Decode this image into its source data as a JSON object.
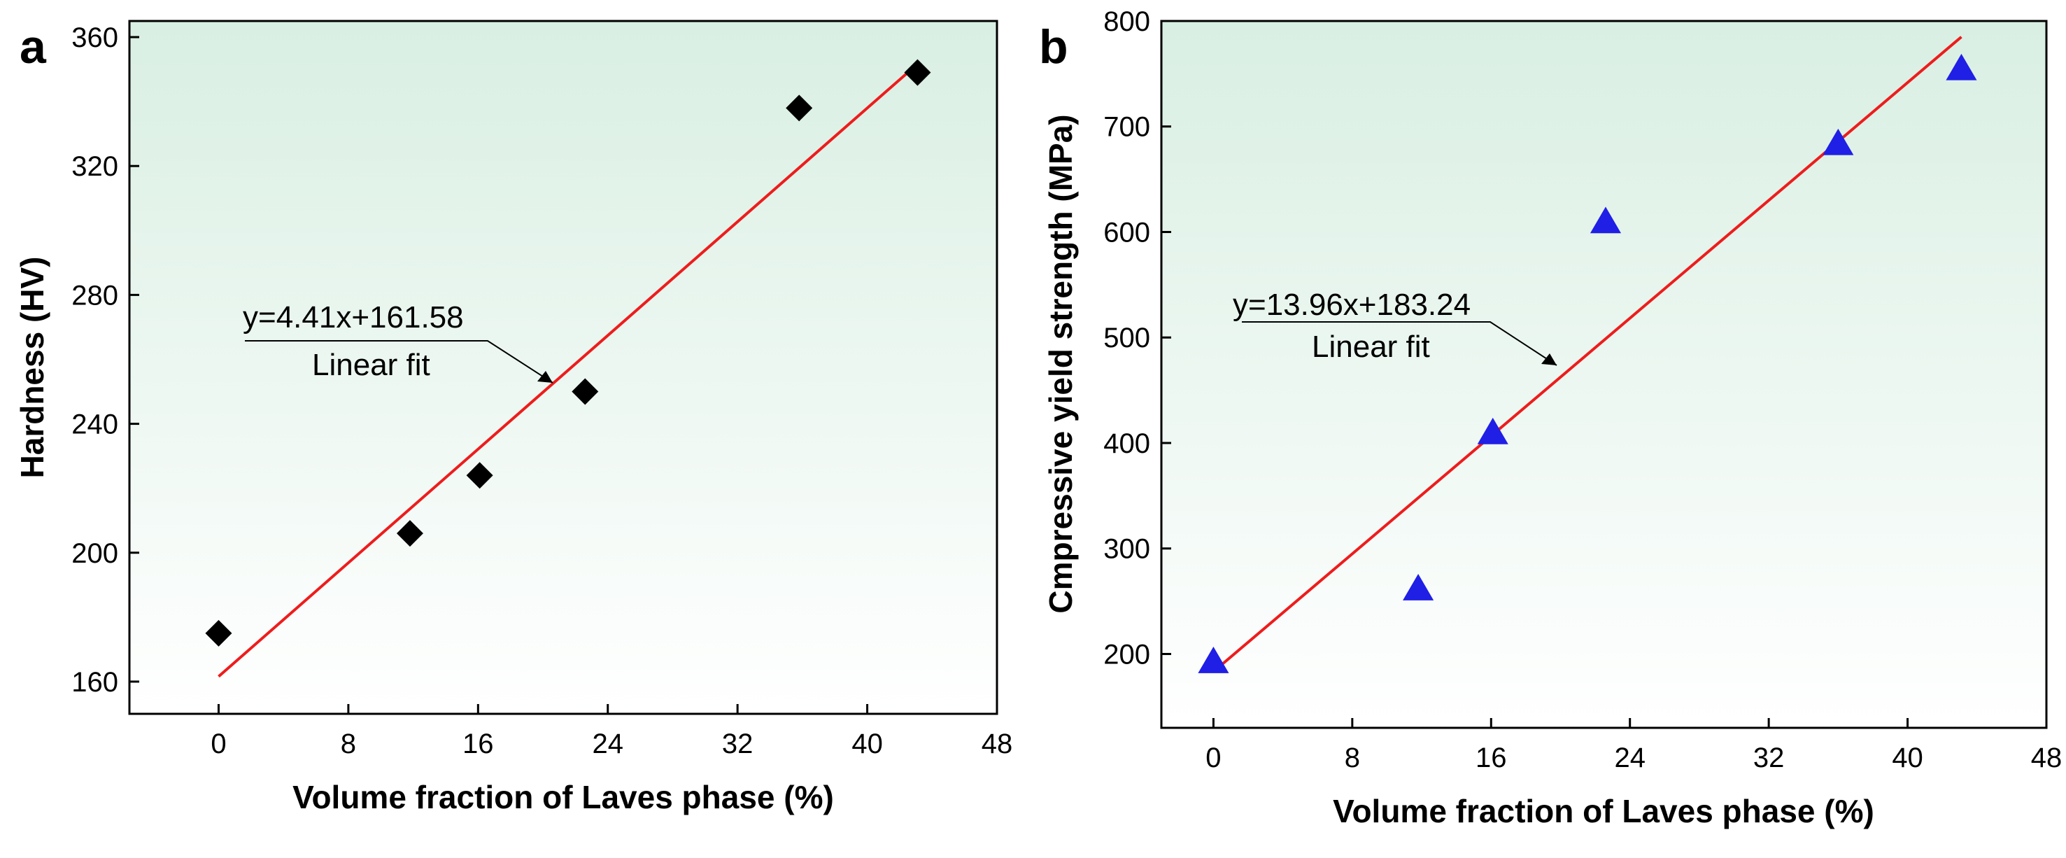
{
  "colors": {
    "frame": "#000000",
    "fit_line": "#ee1c1c",
    "marker_a": "#000000",
    "marker_b": "#1f1fe6",
    "bg_top": "#d9efe3",
    "bg_bottom": "#ffffff"
  },
  "chart_data": [
    {
      "type": "scatter",
      "panel_label": "a",
      "xlabel": "Volume fraction of Laves phase (%)",
      "ylabel": "Hardness (HV)",
      "xlim": [
        -5.5,
        48
      ],
      "ylim": [
        150,
        365
      ],
      "xticks": [
        0,
        8,
        16,
        24,
        32,
        40,
        48
      ],
      "yticks": [
        160,
        200,
        240,
        280,
        320,
        360
      ],
      "marker": "diamond",
      "series": [
        {
          "name": "Hardness",
          "x": [
            0,
            11.8,
            16.1,
            22.6,
            35.8,
            43.1
          ],
          "y": [
            175,
            206,
            224,
            250,
            338,
            349
          ]
        }
      ],
      "fit": {
        "name": "Linear fit",
        "slope": 4.41,
        "intercept": 161.58,
        "x_range": [
          0,
          43.1
        ]
      },
      "annotation": {
        "equation": "y=4.41x+161.58",
        "label": "Linear fit"
      }
    },
    {
      "type": "scatter",
      "panel_label": "b",
      "xlabel": "Volume fraction of Laves phase (%)",
      "ylabel": "Cmpressive yield strength (MPa)",
      "xlim": [
        -3,
        48
      ],
      "ylim": [
        130,
        800
      ],
      "xticks": [
        0,
        8,
        16,
        24,
        32,
        40,
        48
      ],
      "yticks": [
        200,
        300,
        400,
        500,
        600,
        700,
        800
      ],
      "marker": "triangle",
      "series": [
        {
          "name": "Compressive yield strength",
          "x": [
            0,
            11.8,
            16.1,
            22.6,
            36.0,
            43.1
          ],
          "y": [
            193,
            262,
            410,
            610,
            684,
            755
          ]
        }
      ],
      "fit": {
        "name": "Linear fit",
        "slope": 13.96,
        "intercept": 183.24,
        "x_range": [
          0,
          43.1
        ]
      },
      "annotation": {
        "equation": "y=13.96x+183.24",
        "label": "Linear fit"
      }
    }
  ]
}
